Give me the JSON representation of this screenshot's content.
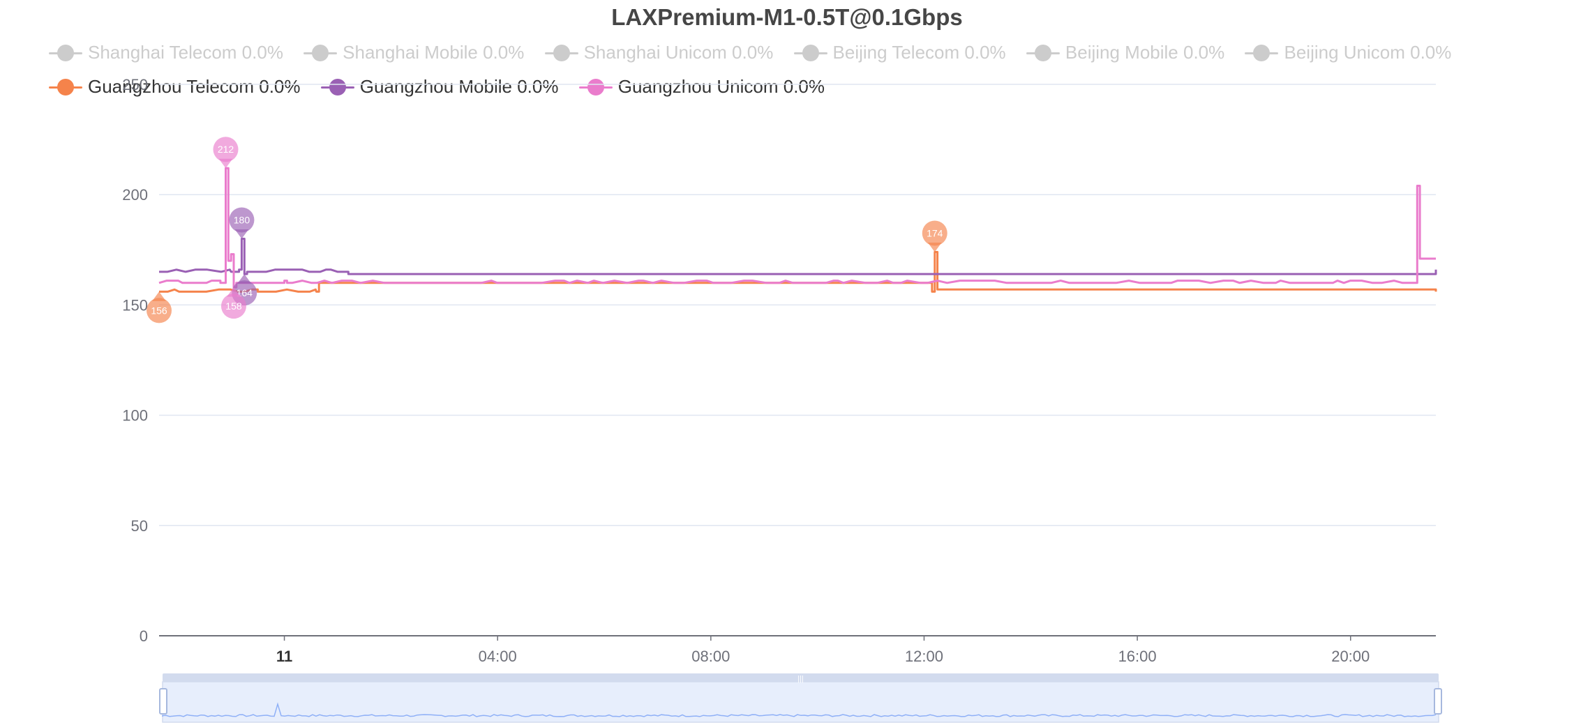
{
  "chart_data": {
    "type": "line",
    "title": "LAXPremium-M1-0.5T@0.1Gbps",
    "ylim": [
      0,
      250
    ],
    "y_ticks": [
      "0",
      "50",
      "100",
      "150",
      "200",
      "250"
    ],
    "x_tick_labels": [
      "11",
      "04:00",
      "08:00",
      "12:00",
      "16:00",
      "20:00"
    ],
    "x_range_hours": [
      -2.35,
      21.6
    ],
    "grid": true,
    "legend_placement": "top",
    "series": [
      {
        "name": "Shanghai Telecom 0.0%",
        "color": "#cccccc",
        "visible": false,
        "values": []
      },
      {
        "name": "Shanghai Mobile 0.0%",
        "color": "#cccccc",
        "visible": false,
        "values": []
      },
      {
        "name": "Shanghai Unicom 0.0%",
        "color": "#cccccc",
        "visible": false,
        "values": []
      },
      {
        "name": "Beijing Telecom 0.0%",
        "color": "#cccccc",
        "visible": false,
        "values": []
      },
      {
        "name": "Beijing Mobile 0.0%",
        "color": "#cccccc",
        "visible": false,
        "values": []
      },
      {
        "name": "Beijing Unicom 0.0%",
        "color": "#cccccc",
        "visible": false,
        "values": []
      },
      {
        "name": "Guangzhou Telecom 0.0%",
        "color": "#f5834b",
        "visible": true,
        "x": [
          -2.35,
          -0.5,
          0.6,
          0.65,
          12.15,
          12.2,
          12.25,
          21.6
        ],
        "y": [
          156,
          156,
          156,
          160,
          156,
          174,
          157,
          156
        ],
        "markers": [
          {
            "label": "156",
            "x": -2.35,
            "y": 156,
            "kind": "min"
          },
          {
            "label": "174",
            "x": 12.2,
            "y": 174,
            "kind": "max"
          }
        ]
      },
      {
        "name": "Guangzhou Mobile 0.0%",
        "color": "#9a60b4",
        "visible": true,
        "x": [
          -2.35,
          -1.0,
          -0.85,
          -0.8,
          -0.75,
          -0.7,
          1.0,
          1.2,
          21.6
        ],
        "y": [
          165,
          165,
          166,
          180,
          164,
          165,
          165,
          164,
          166
        ],
        "markers": [
          {
            "label": "180",
            "x": -0.8,
            "y": 180,
            "kind": "max"
          },
          {
            "label": "164",
            "x": -0.75,
            "y": 164,
            "kind": "min"
          }
        ]
      },
      {
        "name": "Guangzhou Unicom 0.0%",
        "color": "#ea7ccc",
        "visible": true,
        "x": [
          -2.35,
          -1.2,
          -1.1,
          -1.05,
          -1.0,
          -0.95,
          -0.9,
          -0.85,
          0.0,
          0.05,
          2.0,
          21.2,
          21.25,
          21.3,
          21.6
        ],
        "y": [
          160,
          160,
          212,
          170,
          173,
          158,
          160,
          160,
          161,
          160,
          160,
          160,
          204,
          171,
          171
        ],
        "markers": [
          {
            "label": "212",
            "x": -1.1,
            "y": 212,
            "kind": "max"
          },
          {
            "label": "158",
            "x": -0.95,
            "y": 158,
            "kind": "min"
          }
        ]
      }
    ],
    "data_zoom": {
      "start_pct": 0,
      "end_pct": 100,
      "handle_label": "|||"
    }
  }
}
